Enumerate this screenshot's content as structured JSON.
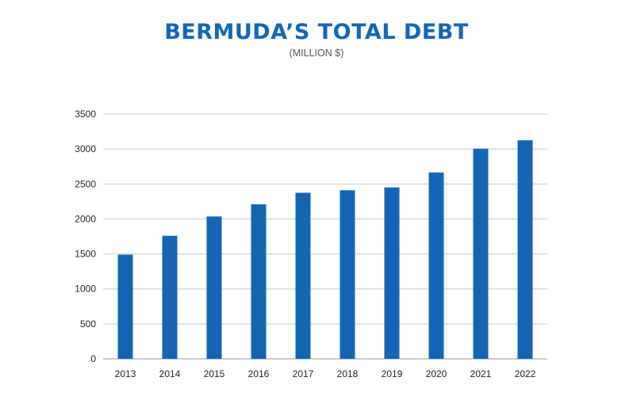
{
  "chart_data": {
    "type": "bar",
    "title": "BERMUDA’S TOTAL DEBT",
    "subtitle": "(MILLION $)",
    "categories": [
      "2013",
      "2014",
      "2015",
      "2016",
      "2017",
      "2018",
      "2019",
      "2020",
      "2021",
      "2022"
    ],
    "values": [
      1490,
      1760,
      2035,
      2210,
      2375,
      2410,
      2450,
      2665,
      3005,
      3125
    ],
    "ylim": [
      0,
      3500
    ],
    "yticks": [
      0,
      500,
      1000,
      1500,
      2000,
      2500,
      3000,
      3500
    ],
    "grid": true,
    "legend": "none",
    "bar_color": "#1466b4",
    "grid_color": "#cccccc"
  }
}
